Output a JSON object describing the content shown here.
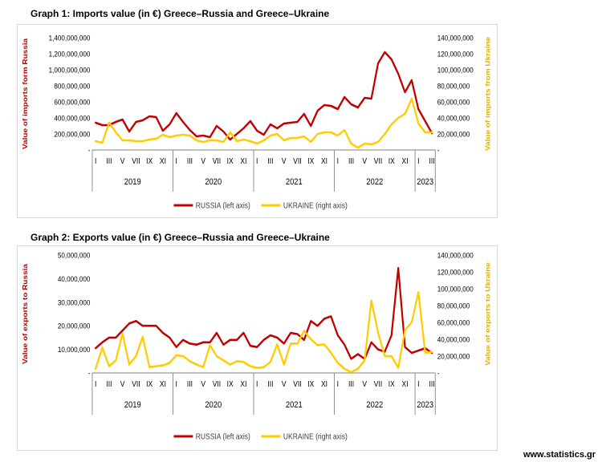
{
  "page": {
    "footer": "www.statistics.gr"
  },
  "colors": {
    "russia": "#c00000",
    "ukraine": "#ffcc00",
    "ukraine_label": "#e0b000",
    "axis": "#7f7f7f"
  },
  "x_axis": {
    "month_labels": [
      "I",
      "III",
      "V",
      "VII",
      "IX",
      "XI",
      "I",
      "III",
      "V",
      "VII",
      "IX",
      "XI",
      "I",
      "III",
      "V",
      "VII",
      "IX",
      "XI",
      "I",
      "III",
      "V",
      "VII",
      "IX",
      "XI",
      "I",
      "III"
    ],
    "years": [
      "2019",
      "2020",
      "2021",
      "2022",
      "2023"
    ]
  },
  "chart_data": [
    {
      "type": "line",
      "title": "Graph 1: Imports value (in €) Greece–Russia and Greece–Ukraine",
      "ylabel": "Value of imports form Russia",
      "ylabel_right": "Value of  imports from Ukraine",
      "ylim": [
        0,
        1400000000
      ],
      "ylim_right": [
        0,
        140000000
      ],
      "yticks_left": [
        "-",
        "200,000,000",
        "400,000,000",
        "600,000,000",
        "800,000,000",
        "1,000,000,000",
        "1,200,000,000",
        "1,400,000,000"
      ],
      "yticks_right": [
        "-",
        "20,000,000",
        "40,000,000",
        "60,000,000",
        "80,000,000",
        "100,000,000",
        "120,000,000",
        "140,000,000"
      ],
      "legend": [
        "RUSSIA (left axis)",
        "UKRAINE (right axis)"
      ],
      "legend_position": "bottom",
      "x": [
        "2019-01",
        "2019-02",
        "2019-03",
        "2019-04",
        "2019-05",
        "2019-06",
        "2019-07",
        "2019-08",
        "2019-09",
        "2019-10",
        "2019-11",
        "2019-12",
        "2020-01",
        "2020-02",
        "2020-03",
        "2020-04",
        "2020-05",
        "2020-06",
        "2020-07",
        "2020-08",
        "2020-09",
        "2020-10",
        "2020-11",
        "2020-12",
        "2021-01",
        "2021-02",
        "2021-03",
        "2021-04",
        "2021-05",
        "2021-06",
        "2021-07",
        "2021-08",
        "2021-09",
        "2021-10",
        "2021-11",
        "2021-12",
        "2022-01",
        "2022-02",
        "2022-03",
        "2022-04",
        "2022-05",
        "2022-06",
        "2022-07",
        "2022-08",
        "2022-09",
        "2022-10",
        "2022-11",
        "2022-12",
        "2023-01",
        "2023-02",
        "2023-03"
      ],
      "series": [
        {
          "name": "RUSSIA (left axis)",
          "axis": "left",
          "values": [
            340000000,
            310000000,
            310000000,
            350000000,
            380000000,
            230000000,
            350000000,
            370000000,
            420000000,
            410000000,
            240000000,
            320000000,
            460000000,
            350000000,
            250000000,
            170000000,
            180000000,
            160000000,
            300000000,
            230000000,
            130000000,
            200000000,
            270000000,
            360000000,
            240000000,
            190000000,
            320000000,
            270000000,
            330000000,
            340000000,
            350000000,
            450000000,
            300000000,
            490000000,
            560000000,
            550000000,
            510000000,
            660000000,
            570000000,
            530000000,
            650000000,
            640000000,
            1080000000,
            1220000000,
            1130000000,
            950000000,
            720000000,
            870000000,
            510000000,
            360000000,
            210000000
          ]
        },
        {
          "name": "UKRAINE (right axis)",
          "axis": "right",
          "values": [
            11000000,
            9000000,
            34000000,
            22000000,
            12000000,
            12000000,
            11000000,
            11000000,
            13000000,
            14000000,
            19000000,
            16000000,
            18000000,
            19000000,
            18000000,
            12000000,
            10000000,
            12000000,
            12000000,
            10000000,
            22000000,
            11000000,
            13000000,
            11000000,
            8000000,
            12000000,
            18000000,
            20000000,
            12000000,
            15000000,
            15000000,
            17000000,
            10000000,
            20000000,
            22000000,
            22000000,
            18000000,
            25000000,
            8000000,
            3000000,
            8000000,
            7000000,
            10000000,
            20000000,
            32000000,
            40000000,
            45000000,
            64000000,
            33000000,
            22000000,
            22000000
          ]
        }
      ]
    },
    {
      "type": "line",
      "title": "Graph 2: Exports value (in €) Greece–Russia and Greece–Ukraine",
      "ylabel": "Value of exports to Russia",
      "ylabel_right": "Value of exports to Ukraine",
      "ylim": [
        0,
        50000000
      ],
      "ylim_right": [
        0,
        140000000
      ],
      "yticks_left": [
        "-",
        "10,000,000",
        "20,000,000",
        "30,000,000",
        "40,000,000",
        "50,000,000"
      ],
      "yticks_right": [
        "-",
        "20,000,000",
        "40,000,000",
        "60,000,000",
        "80,000,000",
        "100,000,000",
        "120,000,000",
        "140,000,000"
      ],
      "legend": [
        "RUSSIA (left axis)",
        "UKRAINE (right axis)"
      ],
      "legend_position": "bottom",
      "x": [
        "2019-01",
        "2019-02",
        "2019-03",
        "2019-04",
        "2019-05",
        "2019-06",
        "2019-07",
        "2019-08",
        "2019-09",
        "2019-10",
        "2019-11",
        "2019-12",
        "2020-01",
        "2020-02",
        "2020-03",
        "2020-04",
        "2020-05",
        "2020-06",
        "2020-07",
        "2020-08",
        "2020-09",
        "2020-10",
        "2020-11",
        "2020-12",
        "2021-01",
        "2021-02",
        "2021-03",
        "2021-04",
        "2021-05",
        "2021-06",
        "2021-07",
        "2021-08",
        "2021-09",
        "2021-10",
        "2021-11",
        "2021-12",
        "2022-01",
        "2022-02",
        "2022-03",
        "2022-04",
        "2022-05",
        "2022-06",
        "2022-07",
        "2022-08",
        "2022-09",
        "2022-10",
        "2022-11",
        "2022-12",
        "2023-01",
        "2023-02",
        "2023-03"
      ],
      "series": [
        {
          "name": "RUSSIA (left axis)",
          "axis": "left",
          "values": [
            10500000,
            13000000,
            15000000,
            15000000,
            18000000,
            21000000,
            22000000,
            20000000,
            20000000,
            20000000,
            17000000,
            15000000,
            11000000,
            14000000,
            12500000,
            12000000,
            13000000,
            13000000,
            17000000,
            12000000,
            14000000,
            14000000,
            17000000,
            11500000,
            11000000,
            14000000,
            16000000,
            15000000,
            12500000,
            17000000,
            16500000,
            14000000,
            22000000,
            20000000,
            23000000,
            24000000,
            16000000,
            12000000,
            6000000,
            8000000,
            6000000,
            13000000,
            10000000,
            9000000,
            16000000,
            44500000,
            11000000,
            8500000,
            9500000,
            10500000,
            8500000
          ]
        },
        {
          "name": "UKRAINE (right axis)",
          "axis": "right",
          "values": [
            5000000,
            30000000,
            8000000,
            15000000,
            47000000,
            10000000,
            20000000,
            43000000,
            7000000,
            8000000,
            9000000,
            12000000,
            21000000,
            20000000,
            14000000,
            10000000,
            7000000,
            33000000,
            20000000,
            15000000,
            10000000,
            14000000,
            13000000,
            8000000,
            6000000,
            7000000,
            13000000,
            34000000,
            10000000,
            35000000,
            35000000,
            50000000,
            40000000,
            33000000,
            34000000,
            24000000,
            12000000,
            5000000,
            1000000,
            5000000,
            15000000,
            86000000,
            48000000,
            20000000,
            20000000,
            6000000,
            51000000,
            60000000,
            96000000,
            24000000,
            25000000
          ]
        }
      ]
    }
  ]
}
